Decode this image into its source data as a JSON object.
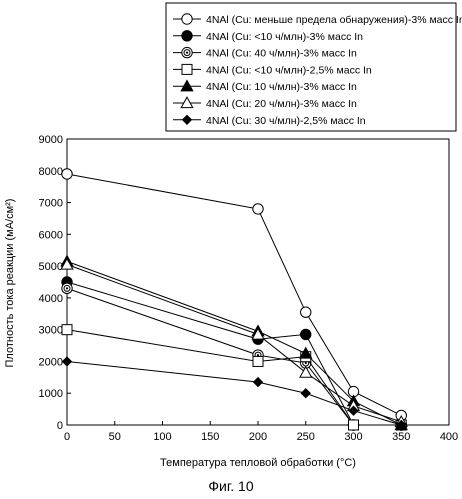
{
  "figure_caption": "Фиг. 10",
  "chart_data": {
    "type": "line",
    "xlabel": "Температура тепловой обработки (°C)",
    "ylabel": "Плотность тока реакции (мА/см²)",
    "xlim": [
      0,
      400
    ],
    "ylim": [
      0,
      9000
    ],
    "xticks": [
      "0",
      "50",
      "100",
      "150",
      "200",
      "250",
      "300",
      "350",
      "400"
    ],
    "yticks": [
      "0",
      "1000",
      "2000",
      "3000",
      "4000",
      "5000",
      "6000",
      "7000",
      "8000",
      "9000"
    ],
    "grid": false,
    "legend_position": "top-right",
    "series": [
      {
        "name": "4NAl (Cu: меньше предела обнаружения)-3% масс In",
        "marker": "circle-open",
        "x": [
          0,
          200,
          250,
          300,
          350
        ],
        "y": [
          7900,
          6800,
          3550,
          1050,
          300
        ]
      },
      {
        "name": "4NAl (Cu: <10 ч/млн)-3% масс In",
        "marker": "circle-filled",
        "x": [
          0,
          200,
          250,
          300,
          350
        ],
        "y": [
          4500,
          2700,
          2850,
          0,
          0
        ]
      },
      {
        "name": "4NAl (Cu: 40 ч/млн)-3% масс In",
        "marker": "double-circle",
        "x": [
          0,
          200,
          250,
          300,
          350
        ],
        "y": [
          4300,
          2200,
          1950,
          0,
          0
        ]
      },
      {
        "name": "4NAl (Cu: <10 ч/млн)-2,5% масс In",
        "marker": "square-open",
        "x": [
          0,
          200,
          250,
          300,
          350
        ],
        "y": [
          3000,
          2000,
          2150,
          0,
          0
        ]
      },
      {
        "name": "4NAl (Cu: 10 ч/млн)-3% масс In",
        "marker": "triangle-filled",
        "x": [
          0,
          200,
          250,
          300,
          350
        ],
        "y": [
          5150,
          2950,
          2250,
          750,
          0
        ]
      },
      {
        "name": "4NAl (Cu: 20 ч/млн)-3% масс In",
        "marker": "triangle-open",
        "x": [
          0,
          200,
          250,
          300,
          350
        ],
        "y": [
          5050,
          2850,
          1650,
          600,
          100
        ]
      },
      {
        "name": "4NAl (Cu: 30 ч/млн)-2,5% масс In",
        "marker": "diamond-filled",
        "x": [
          0,
          200,
          250,
          300,
          350
        ],
        "y": [
          2000,
          1350,
          1000,
          450,
          0
        ]
      }
    ]
  }
}
